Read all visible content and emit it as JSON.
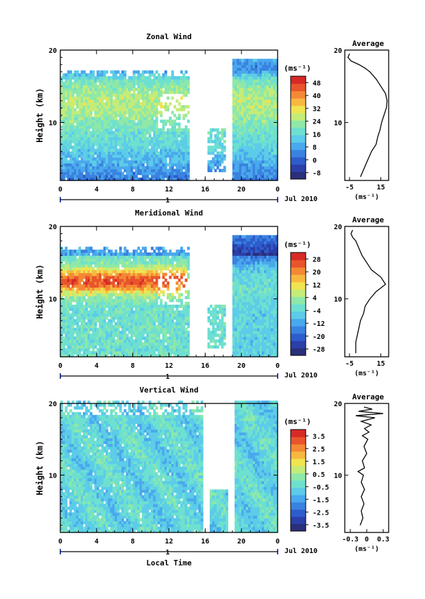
{
  "chart_data": [
    {
      "type": "heatmap",
      "title": "Zonal Wind",
      "ylabel": "Height (km)",
      "xticks": [
        "0",
        "4",
        "8",
        "12",
        "16",
        "20",
        "0"
      ],
      "xlim": [
        0,
        24
      ],
      "yticks": [
        "10",
        "20"
      ],
      "ylim": [
        2,
        20
      ],
      "date_label": "Jul 2010",
      "day_label": "1",
      "colorbar": {
        "unit": "(ms⁻¹)",
        "ticks": [
          "48",
          "40",
          "32",
          "24",
          "16",
          "8",
          "0",
          "-8"
        ],
        "range": [
          -12,
          52
        ]
      },
      "profile": {
        "title": "Average",
        "xticks": [
          "-5",
          "15"
        ],
        "xlim": [
          -8,
          20
        ],
        "xlabel": "(ms⁻¹)",
        "heights": [
          2.5,
          4,
          5,
          6,
          7,
          8,
          9,
          10,
          11,
          12,
          13,
          14,
          15,
          16,
          17,
          17.5,
          18,
          18.5,
          19,
          19.5
        ],
        "values": [
          2,
          5,
          7,
          9,
          12,
          13,
          14.5,
          15.5,
          17,
          18.5,
          19,
          18,
          15,
          12,
          8,
          5,
          1,
          -4,
          -6,
          -5
        ]
      }
    },
    {
      "type": "heatmap",
      "title": "Meridional Wind",
      "ylabel": "Height (km)",
      "xticks": [
        "0",
        "4",
        "8",
        "12",
        "16",
        "20",
        "0"
      ],
      "xlim": [
        0,
        24
      ],
      "yticks": [
        "10",
        "20"
      ],
      "ylim": [
        2,
        20
      ],
      "date_label": "Jul 2010",
      "day_label": "1",
      "colorbar": {
        "unit": "(ms⁻¹)",
        "ticks": [
          "28",
          "20",
          "12",
          "4",
          "-4",
          "-12",
          "-20",
          "-28"
        ],
        "range": [
          -32,
          32
        ]
      },
      "profile": {
        "title": "Average",
        "xticks": [
          "-5",
          "15"
        ],
        "xlim": [
          -8,
          20
        ],
        "xlabel": "(ms⁻¹)",
        "heights": [
          2.5,
          4,
          5,
          6,
          7,
          8,
          9,
          10,
          11,
          12,
          13,
          14,
          15,
          16,
          17,
          18,
          18.5,
          19,
          19.5
        ],
        "values": [
          -1,
          -1,
          0,
          1,
          2,
          4,
          5,
          8,
          12,
          18,
          15,
          9,
          6,
          3,
          1,
          -1,
          -3,
          -4,
          -3
        ]
      }
    },
    {
      "type": "heatmap",
      "title": "Vertical Wind",
      "ylabel": "Height (km)",
      "xlabel": "Local Time",
      "xticks": [
        "0",
        "4",
        "8",
        "12",
        "16",
        "20",
        "0"
      ],
      "xlim": [
        0,
        24
      ],
      "yticks": [
        "10",
        "20"
      ],
      "ylim": [
        2,
        20
      ],
      "date_label": "Jul 2010",
      "day_label": "1",
      "colorbar": {
        "unit": "(ms⁻¹)",
        "ticks": [
          "3.5",
          "2.5",
          "1.5",
          "0.5",
          "-0.5",
          "-1.5",
          "-2.5",
          "-3.5"
        ],
        "range": [
          -4,
          4
        ]
      },
      "profile": {
        "title": "Average",
        "xticks": [
          "-0.3",
          "0",
          "0.3"
        ],
        "xlim": [
          -0.4,
          0.4
        ],
        "xlabel": "(ms⁻¹)",
        "heights": [
          3,
          4,
          5,
          6,
          7,
          8,
          9,
          10,
          10.5,
          11,
          12,
          13,
          14,
          15,
          15.5,
          16,
          16.5,
          17,
          17.5,
          18,
          18.3,
          18.6,
          18.9,
          19.2,
          19.5
        ],
        "values": [
          -0.12,
          -0.07,
          -0.1,
          -0.05,
          -0.1,
          -0.04,
          -0.1,
          -0.06,
          -0.16,
          -0.04,
          -0.08,
          0.0,
          -0.05,
          0.02,
          -0.08,
          0.04,
          -0.04,
          0.08,
          -0.1,
          0.15,
          -0.2,
          0.3,
          -0.15,
          0.1,
          -0.05
        ]
      }
    }
  ]
}
